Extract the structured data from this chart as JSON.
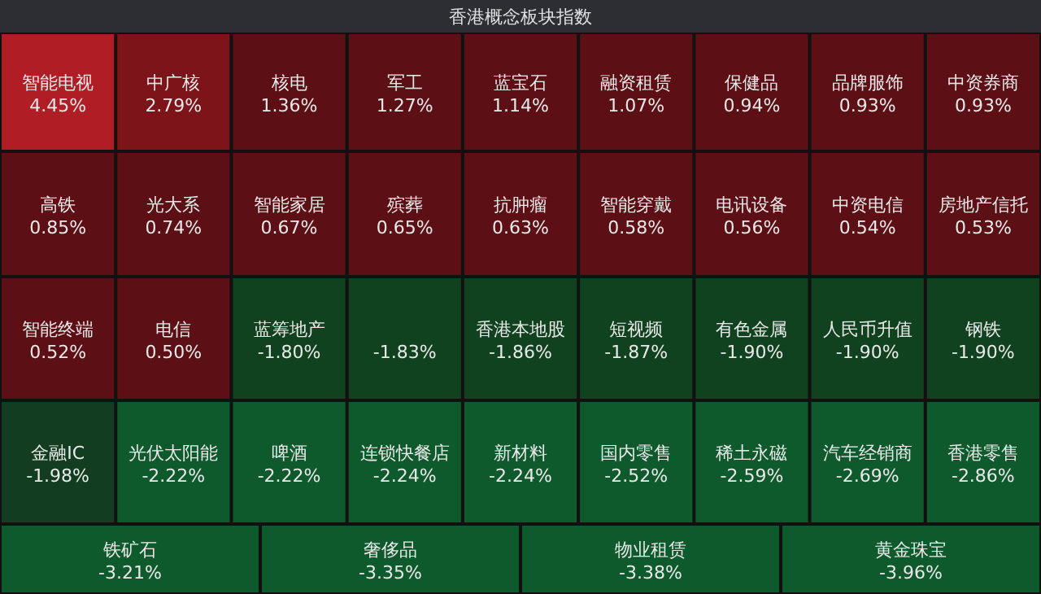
{
  "chart_data": {
    "type": "other",
    "title": "香港概念板块指数",
    "categories": [
      "智能电视",
      "中广核",
      "核电",
      "军工",
      "蓝宝石",
      "融资租赁",
      "保健品",
      "品牌服饰",
      "中资券商",
      "高铁",
      "光大系",
      "智能家居",
      "殡葬",
      "抗肿瘤",
      "智能穿戴",
      "电讯设备",
      "中资电信",
      "房地产信托",
      "智能终端",
      "电信",
      "蓝筹地产",
      null,
      "香港本地股",
      "短视频",
      "有色金属",
      "人民币升值",
      "钢铁",
      "金融IC",
      "光伏太阳能",
      "啤酒",
      "连锁快餐店",
      "新材料",
      "国内零售",
      "稀土永磁",
      "汽车经销商",
      "香港零售",
      "铁矿石",
      "奢侈品",
      "物业租赁",
      "黄金珠宝"
    ],
    "values": [
      4.45,
      2.79,
      1.36,
      1.27,
      1.14,
      1.07,
      0.94,
      0.93,
      0.93,
      0.85,
      0.74,
      0.67,
      0.65,
      0.63,
      0.58,
      0.56,
      0.54,
      0.53,
      0.52,
      0.5,
      -1.8,
      -1.83,
      -1.86,
      -1.87,
      -1.9,
      -1.9,
      -1.9,
      -1.98,
      -2.22,
      -2.22,
      -2.24,
      -2.24,
      -2.52,
      -2.59,
      -2.69,
      -2.86,
      -3.21,
      -3.35,
      -3.38,
      -3.96
    ],
    "value_labels": [
      "4.45%",
      "2.79%",
      "1.36%",
      "1.27%",
      "1.14%",
      "1.07%",
      "0.94%",
      "0.93%",
      "0.93%",
      "0.85%",
      "0.74%",
      "0.67%",
      "0.65%",
      "0.63%",
      "0.58%",
      "0.56%",
      "0.54%",
      "0.53%",
      "0.52%",
      "0.50%",
      "-1.80%",
      "-1.83%",
      "-1.86%",
      "-1.87%",
      "-1.90%",
      "-1.90%",
      "-1.90%",
      "-1.98%",
      "-2.22%",
      "-2.22%",
      "-2.24%",
      "-2.24%",
      "-2.52%",
      "-2.59%",
      "-2.69%",
      "-2.86%",
      "-3.21%",
      "-3.35%",
      "-3.38%",
      "-3.96%"
    ],
    "colors": [
      "#b11d24",
      "#7c1419",
      "#5c0f14",
      "#5c0f14",
      "#5c0f14",
      "#5c0f14",
      "#5c0f14",
      "#5c0f14",
      "#5c0f14",
      "#5c0f14",
      "#5c0f14",
      "#5c0f14",
      "#5c0f14",
      "#5c0f14",
      "#5c0f14",
      "#5c0f14",
      "#5c0f14",
      "#5c0f14",
      "#5c0f14",
      "#5c0f14",
      "#11421f",
      "#11421f",
      "#11421f",
      "#11421f",
      "#11421f",
      "#11421f",
      "#11421f",
      "#123d20",
      "#0f5a2d",
      "#0f5a2d",
      "#0f5a2d",
      "#0f5a2d",
      "#0f5a2d",
      "#0f5a2d",
      "#0f5a2d",
      "#0f5a2d",
      "#0f5a2d",
      "#0f5a2d",
      "#0f5a2d",
      "#0f5a2d"
    ]
  }
}
